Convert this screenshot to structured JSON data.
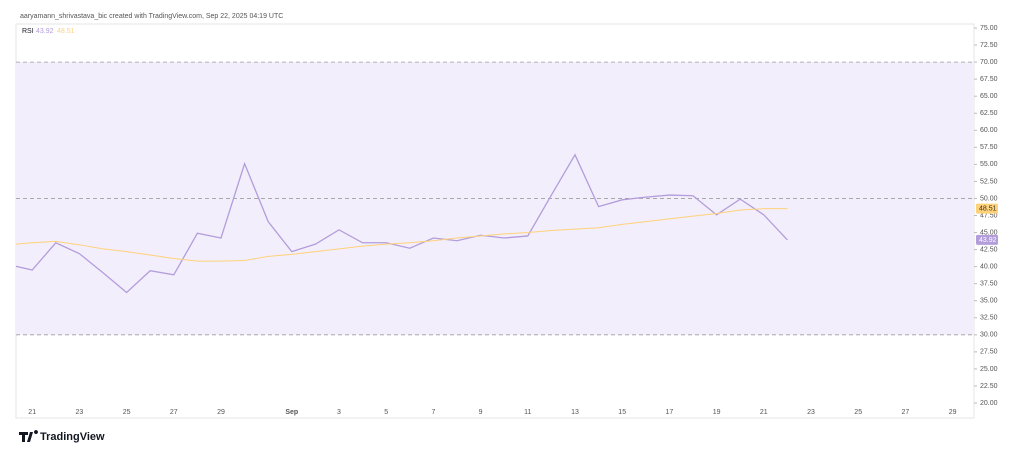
{
  "chart_data": {
    "type": "line",
    "title": "aaryamann_shrivastava_bic created with TradingView.com, Sep 22, 2025 04:19 UTC",
    "brand": "TradingView",
    "categories": [
      null,
      "21",
      null,
      "23",
      null,
      "25",
      null,
      "27",
      null,
      "29",
      null,
      null,
      "Sep",
      null,
      "3",
      null,
      "5",
      null,
      "7",
      null,
      "9",
      null,
      "11",
      null,
      "13",
      null,
      "15",
      null,
      "17",
      null,
      "19",
      null,
      "21",
      null,
      "23",
      null,
      "25",
      null,
      "27",
      null,
      "29"
    ],
    "series": [
      {
        "name": "RSI",
        "color": "#b39ddb",
        "values": [
          40.3,
          39.5,
          43.5,
          41.9,
          39.1,
          36.2,
          39.4,
          38.8,
          44.9,
          44.2,
          55.1,
          46.6,
          42.2,
          43.3,
          45.4,
          43.5,
          43.5,
          42.7,
          44.2,
          43.8,
          44.6,
          44.2,
          44.5,
          50.5,
          56.4,
          48.8,
          49.8,
          50.2,
          50.5,
          50.4,
          47.6,
          49.9,
          47.6,
          43.92,
          null,
          null,
          null,
          null,
          null,
          null,
          null
        ]
      },
      {
        "color": "#ffd27a",
        "values": [
          43.2,
          43.5,
          43.7,
          43.2,
          42.6,
          42.2,
          41.7,
          41.2,
          40.8,
          40.8,
          40.9,
          41.5,
          41.8,
          42.2,
          42.6,
          43.0,
          43.3,
          43.5,
          43.8,
          44.2,
          44.5,
          44.8,
          45.0,
          45.3,
          45.5,
          45.7,
          46.2,
          46.6,
          47.0,
          47.4,
          47.8,
          48.3,
          48.5,
          48.51,
          null,
          null,
          null,
          null,
          null,
          null,
          null
        ]
      }
    ],
    "hlines": [
      70,
      50,
      30
    ],
    "band_color": "#f3eefb",
    "ylim": [
      20,
      75
    ],
    "yticks": [
      {
        "value": 20,
        "label": "20.00"
      },
      {
        "value": 22.5,
        "label": "22.50"
      },
      {
        "value": 25,
        "label": "25.00"
      },
      {
        "value": 27.5,
        "label": "27.50"
      },
      {
        "value": 30,
        "label": "30.00"
      },
      {
        "value": 32.5,
        "label": "32.50"
      },
      {
        "value": 35,
        "label": "35.00"
      },
      {
        "value": 37.5,
        "label": "37.50"
      },
      {
        "value": 40,
        "label": "40.00"
      },
      {
        "value": 42.5,
        "label": "42.50"
      },
      {
        "value": 45,
        "label": "45.00"
      },
      {
        "value": 47.5,
        "label": "47.50"
      },
      {
        "value": 50,
        "label": "50.00"
      },
      {
        "value": 52.5,
        "label": "52.50"
      },
      {
        "value": 55,
        "label": "55.00"
      },
      {
        "value": 57.5,
        "label": "57.50"
      },
      {
        "value": 60,
        "label": "60.00"
      },
      {
        "value": 62.5,
        "label": "62.50"
      },
      {
        "value": 65,
        "label": "65.00"
      },
      {
        "value": 67.5,
        "label": "67.50"
      },
      {
        "value": 70,
        "label": "70.00"
      },
      {
        "value": 72.5,
        "label": "72.50"
      },
      {
        "value": 75,
        "label": "75.00"
      }
    ]
  }
}
